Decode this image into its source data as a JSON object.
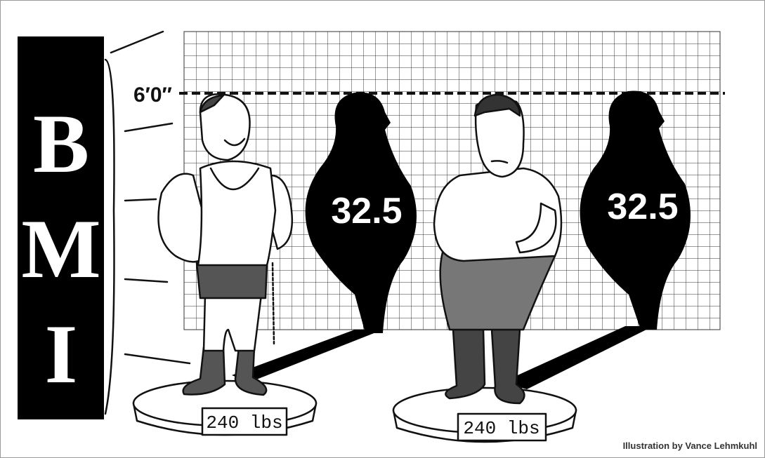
{
  "banner": {
    "letters": [
      "B",
      "M",
      "I"
    ]
  },
  "height_label": "6′0″",
  "figures": [
    {
      "bmi": "32.5",
      "scale": "240 lbs"
    },
    {
      "bmi": "32.5",
      "scale": "240 lbs"
    }
  ],
  "credit": "Illustration by Vance Lehmkuhl"
}
